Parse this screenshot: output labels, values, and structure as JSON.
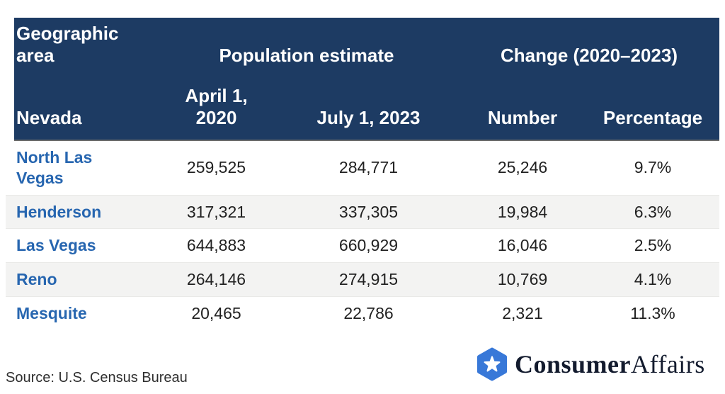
{
  "colors": {
    "header_navy": "#1d3b63",
    "link_blue": "#2766b0",
    "stripe_gray": "#f3f3f2",
    "logo_hexagon_blue": "#3878d8",
    "logo_text_navy": "#131b2e",
    "header_underline_gray": "#6b6b6b"
  },
  "table": {
    "header": {
      "geographic_area": "Geographic area",
      "population_estimate": "Population estimate",
      "change": "Change (2020–2023)",
      "state": "Nevada",
      "april_2020": "April 1,\n2020",
      "july_2023": "July 1, 2023",
      "number": "Number",
      "percentage": "Percentage"
    },
    "rows": [
      {
        "city": "North Las Vegas",
        "april_2020": "259,525",
        "july_2023": "284,771",
        "number": "25,246",
        "percentage": "9.7%"
      },
      {
        "city": "Henderson",
        "april_2020": "317,321",
        "july_2023": "337,305",
        "number": "19,984",
        "percentage": "6.3%"
      },
      {
        "city": "Las Vegas",
        "april_2020": "644,883",
        "july_2023": "660,929",
        "number": "16,046",
        "percentage": "2.5%"
      },
      {
        "city": "Reno",
        "april_2020": "264,146",
        "july_2023": "274,915",
        "number": "10,769",
        "percentage": "4.1%"
      },
      {
        "city": "Mesquite",
        "april_2020": "20,465",
        "july_2023": "22,786",
        "number": "2,321",
        "percentage": "11.3%"
      }
    ]
  },
  "footer": {
    "source": "Source: U.S. Census Bureau",
    "logo": {
      "part1": "Consumer",
      "part2": "Affairs",
      "icon": "star-hexagon-icon"
    }
  },
  "chart_data": {
    "type": "table",
    "title": "Nevada population estimates and change (2020–2023)",
    "column_groups": [
      "Geographic area",
      "Population estimate",
      "Change (2020–2023)"
    ],
    "columns": [
      "Nevada",
      "April 1, 2020",
      "July 1, 2023",
      "Number",
      "Percentage"
    ],
    "rows": [
      [
        "North Las Vegas",
        259525,
        284771,
        25246,
        "9.7%"
      ],
      [
        "Henderson",
        317321,
        337305,
        19984,
        "6.3%"
      ],
      [
        "Las Vegas",
        644883,
        660929,
        16046,
        "2.5%"
      ],
      [
        "Reno",
        264146,
        274915,
        10769,
        "4.1%"
      ],
      [
        "Mesquite",
        20465,
        22786,
        2321,
        "11.3%"
      ]
    ],
    "source": "Source: U.S. Census Bureau"
  }
}
